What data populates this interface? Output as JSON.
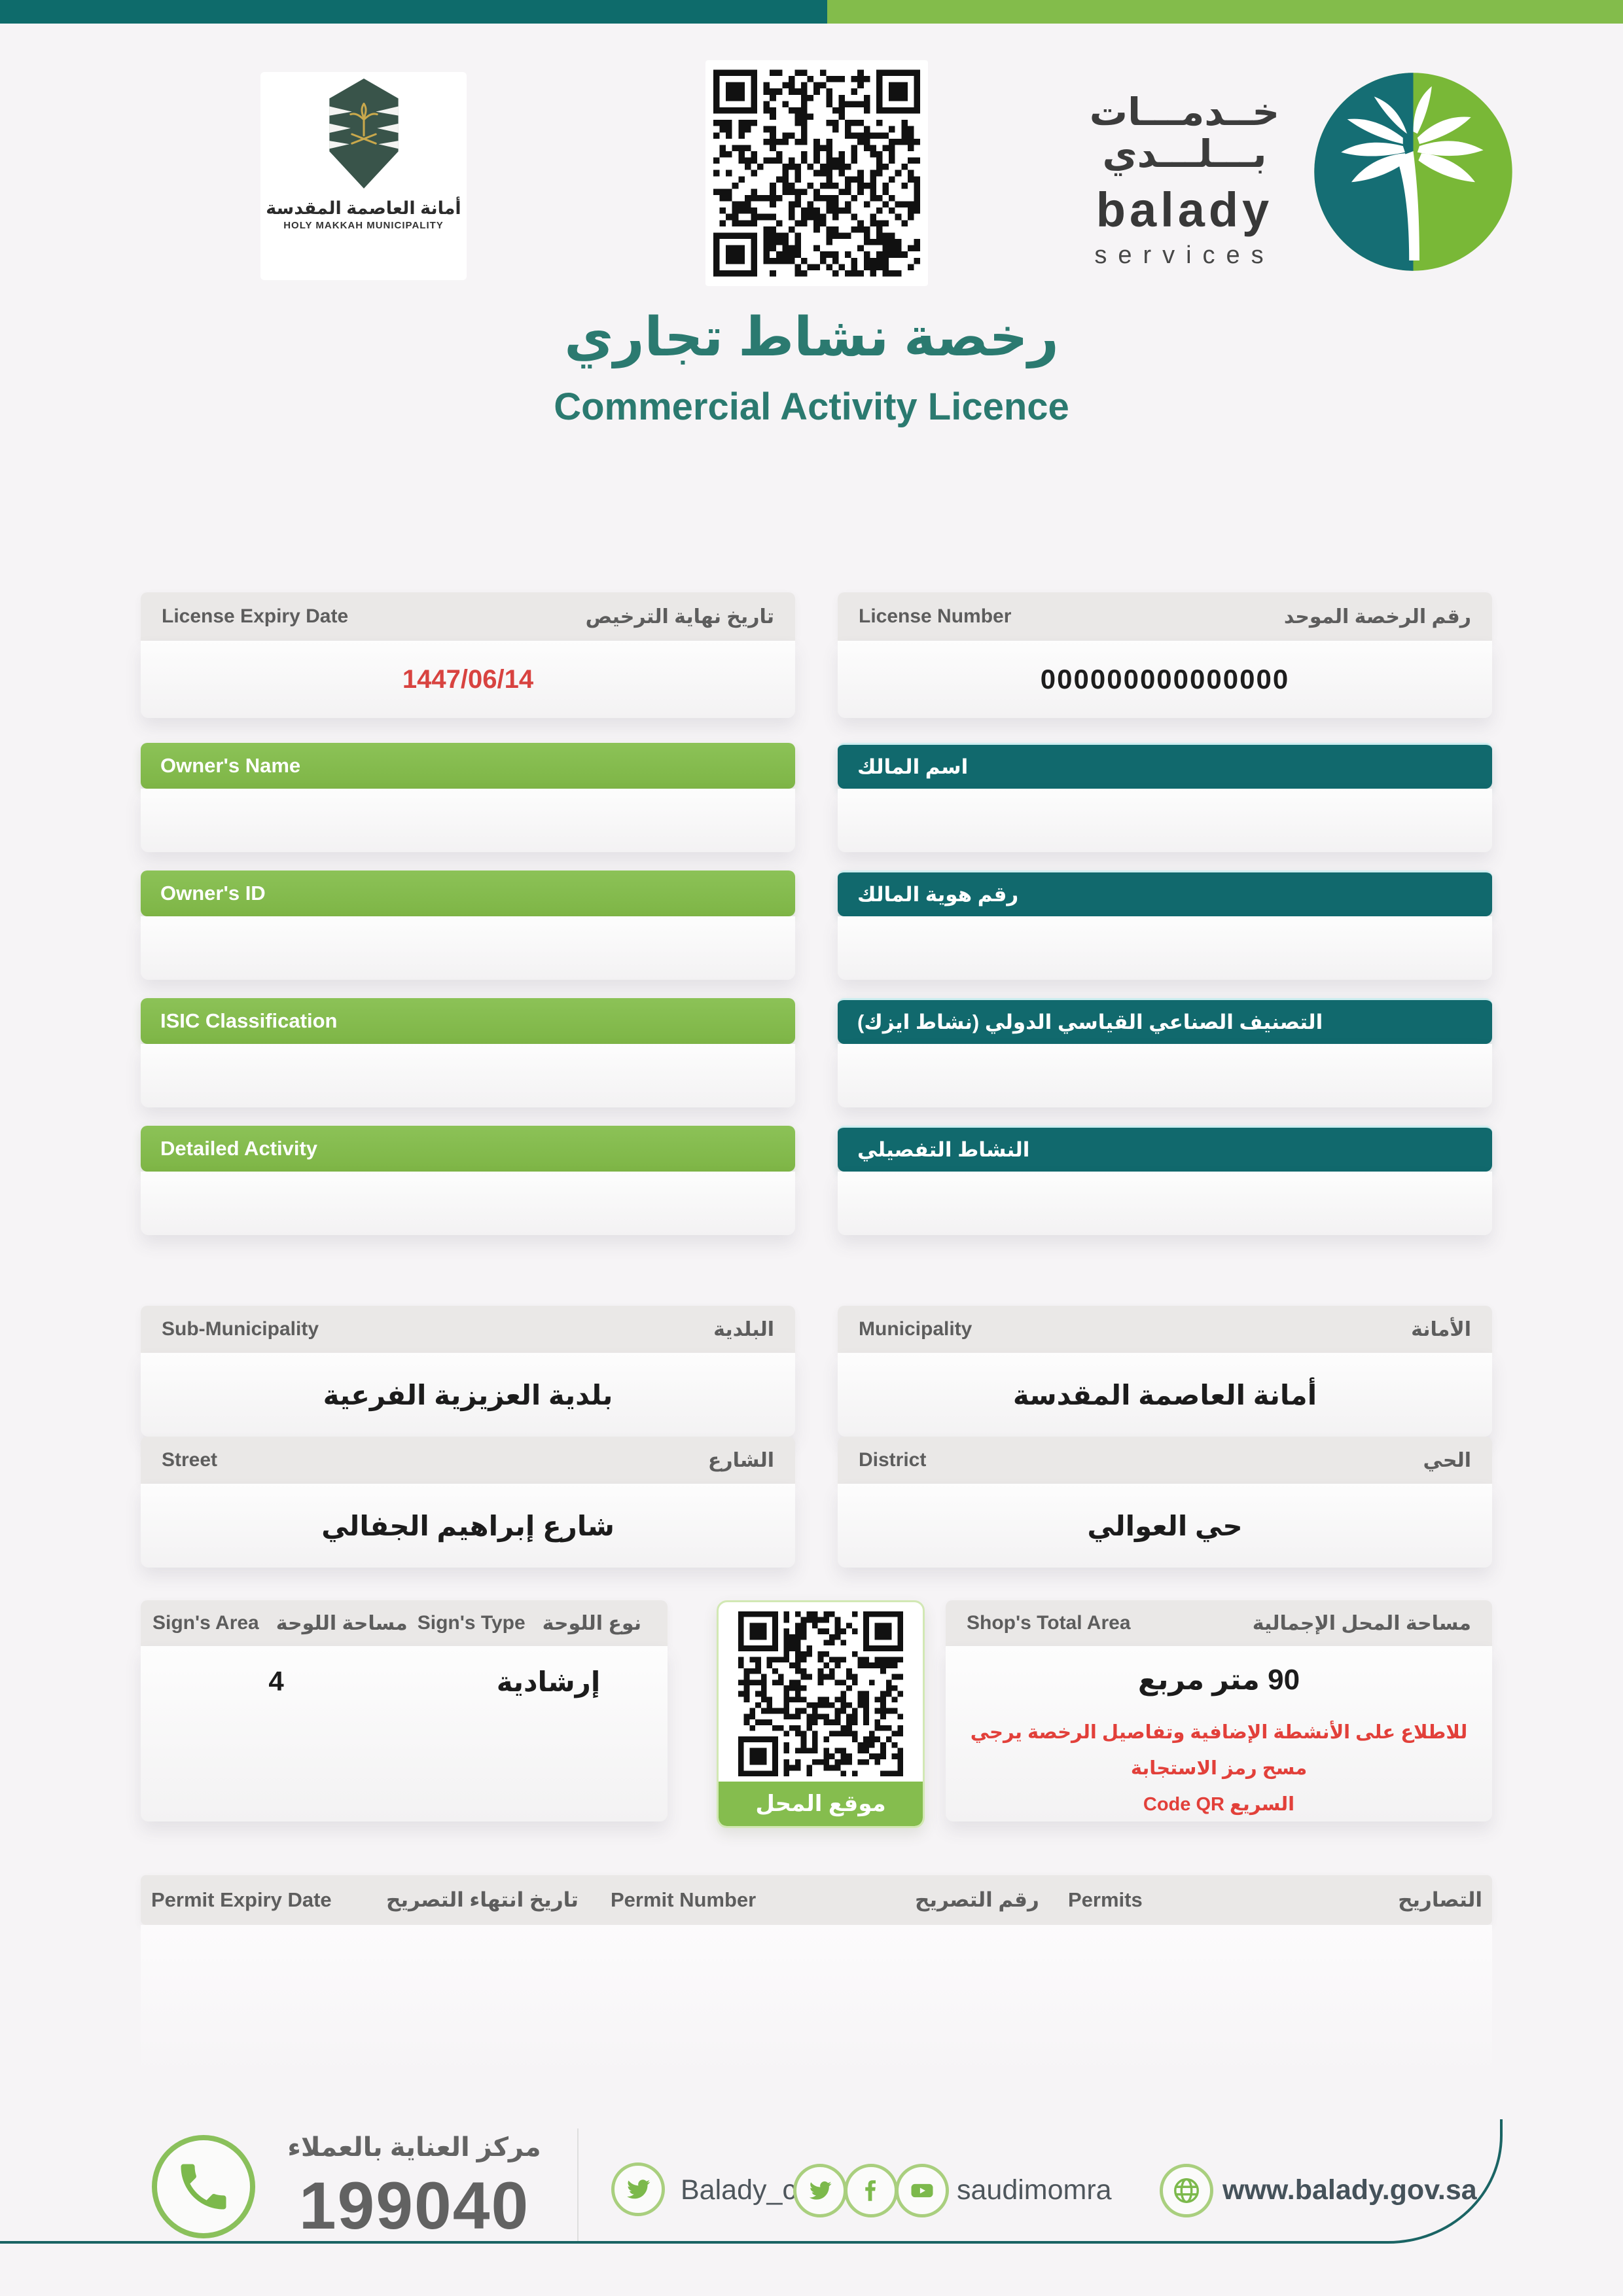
{
  "colors": {
    "teal_dark": "#0e6b6b",
    "teal_bar": "#11696d",
    "green": "#83bc4b",
    "title_teal": "#2b7a70",
    "alert_red": "#e2403a",
    "date_red": "#d84340",
    "gray_label": "#5d5d5d"
  },
  "icons": {
    "phone": "phone-icon",
    "twitter": "twitter-bird-icon",
    "facebook": "facebook-icon",
    "youtube": "youtube-icon",
    "globe": "globe-icon",
    "qr": "qr-code",
    "palm": "balady-palm-logo",
    "emblem": "makkah-emblem"
  },
  "header": {
    "municipality": {
      "name_ar": "أمانة العاصمة المقدسة",
      "name_en": "HOLY MAKKAH MUNICIPALITY"
    },
    "balady": {
      "wordmark_ar_1": "خــدمـــات",
      "wordmark_ar_2": "بـــلـــدي",
      "wordmark_en": "balady",
      "services": "services"
    }
  },
  "title": {
    "ar": "رخصة نشاط تجاري",
    "en": "Commercial Activity Licence"
  },
  "license": {
    "expiry": {
      "label_en": "License Expiry Date",
      "label_ar": "تاريخ نهاية الترخيص",
      "value": "1447/06/14"
    },
    "number": {
      "label_en": "License Number",
      "label_ar": "رقم الرخصة الموحد",
      "value": "000000000000000"
    }
  },
  "owner_rows": [
    {
      "label_en": "Owner's Name",
      "label_ar": "اسم المالك",
      "value": ""
    },
    {
      "label_en": "Owner's ID",
      "label_ar": "رقم هوية المالك",
      "value": ""
    },
    {
      "label_en": "ISIC Classification",
      "label_ar": "التصنيف الصناعي القياسي الدولي (نشاط ايزك)",
      "value": ""
    },
    {
      "label_en": "Detailed Activity",
      "label_ar": "النشاط التفصيلي",
      "value": ""
    }
  ],
  "location": {
    "sub_municipality": {
      "label_en": "Sub-Municipality",
      "label_ar": "البلدية",
      "value": "بلدية العزيزية الفرعية"
    },
    "municipality": {
      "label_en": "Municipality",
      "label_ar": "الأمانة",
      "value": "أمانة العاصمة المقدسة"
    },
    "street": {
      "label_en": "Street",
      "label_ar": "الشارع",
      "value": "شارع إبراهيم الجفالي"
    },
    "district": {
      "label_en": "District",
      "label_ar": "الحي",
      "value": "حي العوالي"
    }
  },
  "sign": {
    "area": {
      "label_en": "Sign's Area",
      "label_ar": "مساحة اللوحة",
      "value": "4"
    },
    "type": {
      "label_en": "Sign's Type",
      "label_ar": "نوع اللوحة",
      "value": "إرشادية"
    },
    "qr_caption": "موقع المحل"
  },
  "shop": {
    "label_en": "Shop's Total Area",
    "label_ar": "مساحة المحل الإجمالية",
    "value": "90 متر مربع",
    "note_line1": "للاطلاع على الأنشطة الإضافية وتفاصيل الرخصة يرجي مسح رمز الاستجابة",
    "note_line2": "السريع Code QR"
  },
  "permits": {
    "expiry_en": "Permit Expiry Date",
    "expiry_ar": "تاريخ انتهاء التصريح",
    "number_en": "Permit Number",
    "number_ar": "رقم التصريح",
    "title_en": "Permits",
    "title_ar": "التصاريح"
  },
  "footer": {
    "care_label": "مركز العناية بالعملاء",
    "phone": "199040",
    "twitter_handle": "Balady_cs",
    "social_handle": "saudimomra",
    "website": "www.balady.gov.sa"
  }
}
